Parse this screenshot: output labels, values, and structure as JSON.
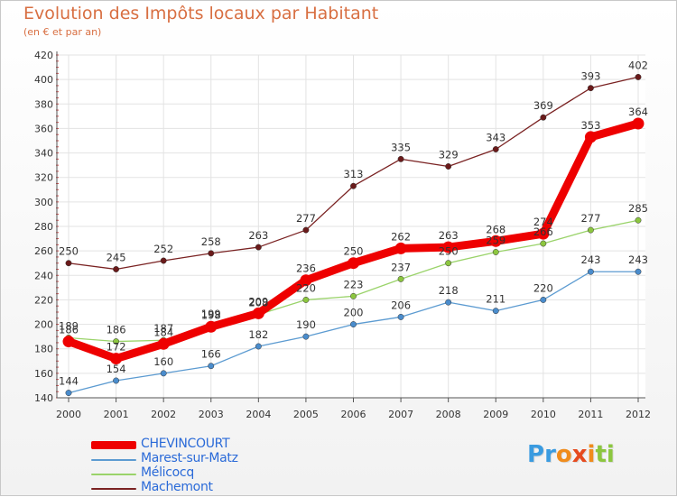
{
  "title": "Evolution des Impôts locaux par Habitant",
  "subtitle": "(en € et par an)",
  "logo": {
    "letters": [
      {
        "ch": "P",
        "color": "#3a9be0"
      },
      {
        "ch": "r",
        "color": "#3a9be0"
      },
      {
        "ch": "o",
        "color": "#f08c1c"
      },
      {
        "ch": "x",
        "color": "#e64a1e"
      },
      {
        "ch": "i",
        "color": "#f08c1c"
      },
      {
        "ch": "t",
        "color": "#8cc63f"
      },
      {
        "ch": "i",
        "color": "#8cc63f"
      }
    ]
  },
  "chart_data": {
    "type": "line",
    "title": "Evolution des Impôts locaux par Habitant",
    "subtitle": "(en € et par an)",
    "xlabel": "",
    "ylabel": "",
    "categories": [
      "2000",
      "2001",
      "2002",
      "2003",
      "2004",
      "2005",
      "2006",
      "2007",
      "2008",
      "2009",
      "2010",
      "2011",
      "2012"
    ],
    "ylim": [
      140,
      420
    ],
    "yticks": [
      140,
      160,
      180,
      200,
      220,
      240,
      260,
      280,
      300,
      320,
      340,
      360,
      380,
      400,
      420
    ],
    "grid": true,
    "legend_position": "bottom-left",
    "series": [
      {
        "name": "Machemont",
        "color": "#7a2222",
        "dot": "#6a1a1a",
        "emphasis": false,
        "values": [
          250,
          245,
          252,
          258,
          263,
          277,
          313,
          335,
          329,
          343,
          369,
          393,
          402
        ]
      },
      {
        "name": "Marest-sur-Matz",
        "color": "#5c9bd1",
        "dot": "#4a8ccc",
        "emphasis": false,
        "values": [
          144,
          154,
          160,
          166,
          182,
          190,
          200,
          206,
          218,
          211,
          220,
          243,
          243
        ]
      },
      {
        "name": "Mélicocq",
        "color": "#9ad36a",
        "dot": "#8cc63f",
        "emphasis": false,
        "values": [
          189,
          186,
          187,
          199,
          208,
          220,
          223,
          237,
          250,
          259,
          266,
          277,
          285
        ]
      },
      {
        "name": "CHEVINCOURT",
        "color": "#ee0000",
        "dot": "#ee0000",
        "emphasis": true,
        "values": [
          186,
          172,
          184,
          198,
          209,
          236,
          250,
          262,
          263,
          268,
          274,
          353,
          364
        ]
      }
    ],
    "legend_order": [
      "CHEVINCOURT",
      "Marest-sur-Matz",
      "Mélicocq",
      "Machemont"
    ]
  }
}
